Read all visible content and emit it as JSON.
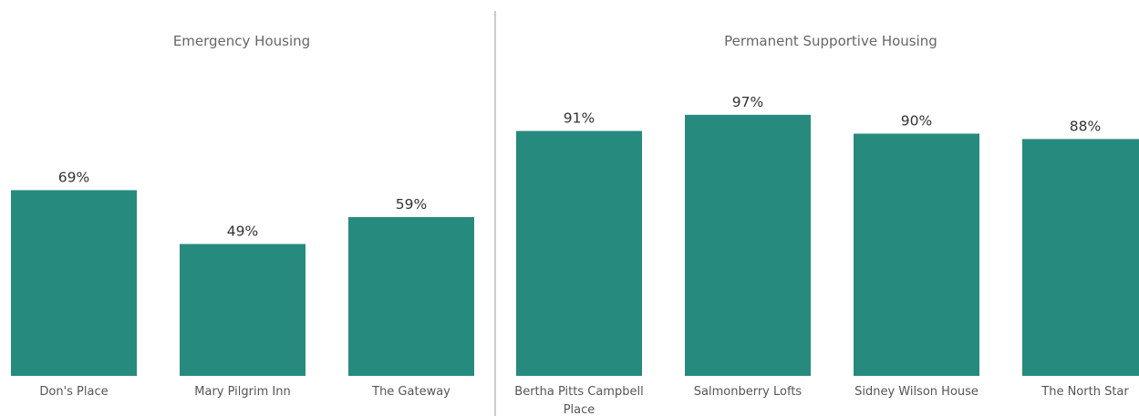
{
  "colors": {
    "bar": "#268a7e",
    "divider": "#cccccc",
    "axis_line": "#e6e6e6"
  },
  "chart_data": [
    {
      "type": "bar",
      "title": "Emergency Housing",
      "categories": [
        "Don's Place",
        "Mary Pilgrim Inn",
        "The Gateway"
      ],
      "values": [
        69,
        49,
        59
      ],
      "data_labels": [
        "69%",
        "49%",
        "59%"
      ],
      "unit": "%",
      "ylim": [
        0,
        100
      ],
      "grid": false
    },
    {
      "type": "bar",
      "title": "Permanent Supportive Housing",
      "categories": [
        "Bertha Pitts Campbell Place",
        "Salmonberry Lofts",
        "Sidney Wilson House",
        "The North Star"
      ],
      "values": [
        91,
        97,
        90,
        88
      ],
      "data_labels": [
        "91%",
        "97%",
        "90%",
        "88%"
      ],
      "unit": "%",
      "ylim": [
        0,
        100
      ],
      "grid": false
    }
  ]
}
